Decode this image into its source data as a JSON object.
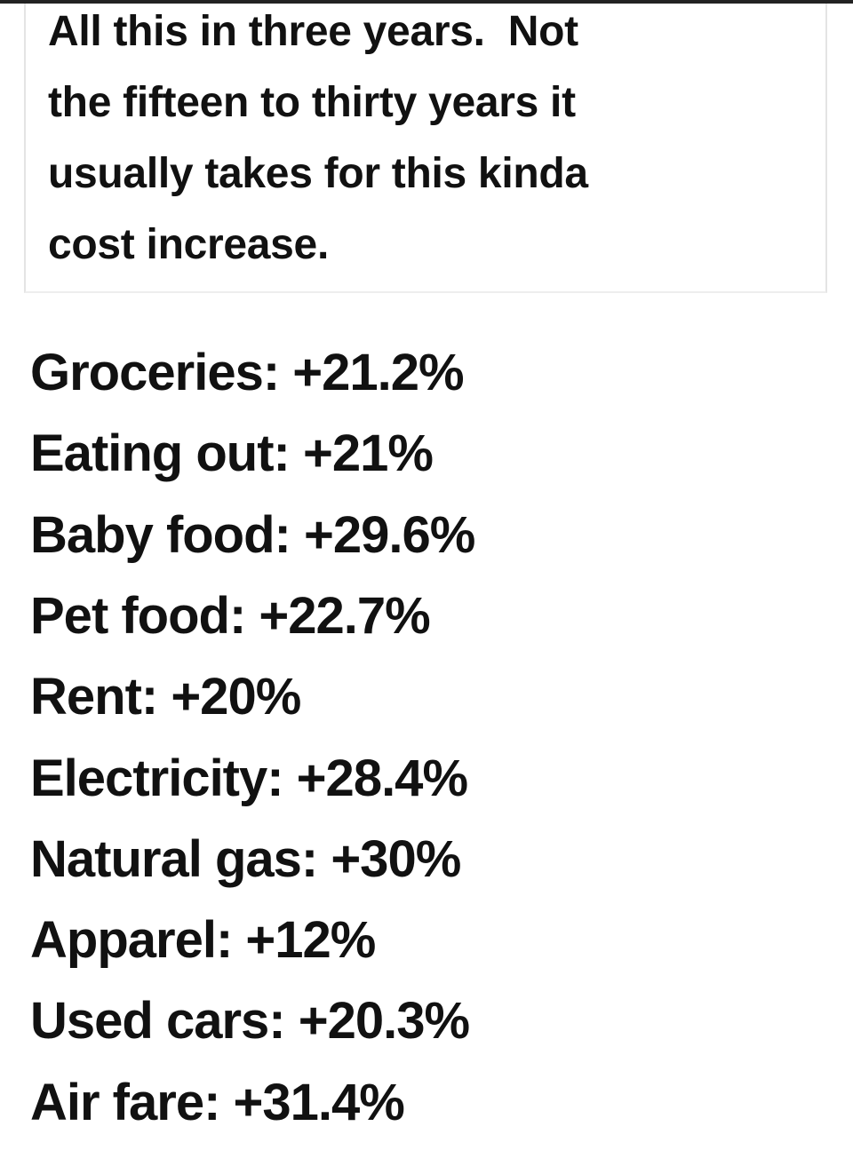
{
  "header": {
    "lines": [
      "All this in three years.  Not",
      "the fifteen to thirty years it",
      "usually takes for this kinda",
      "cost increase."
    ]
  },
  "list": {
    "items": [
      "Groceries: +21.2%",
      "Eating out: +21%",
      "Baby food: +29.6%",
      "Pet food: +22.7%",
      "Rent: +20%",
      "Electricity: +28.4%",
      "Natural gas: +30%",
      "Apparel: +12%",
      "Used cars: +20.3%",
      "Air fare: +31.4%"
    ]
  }
}
